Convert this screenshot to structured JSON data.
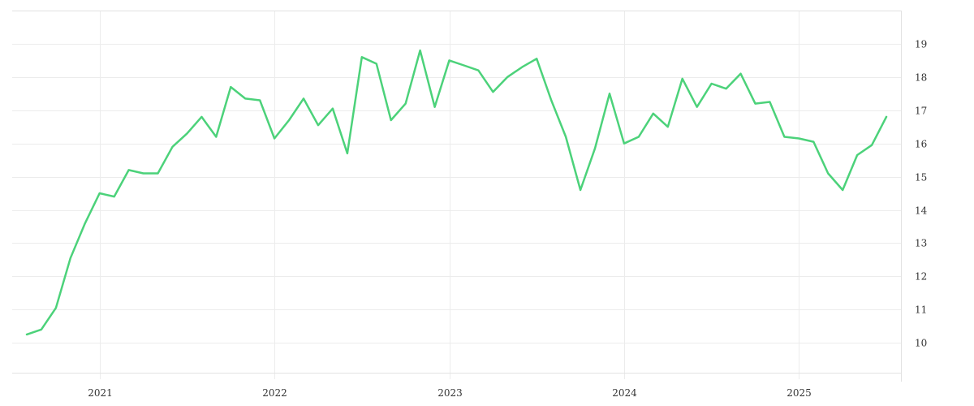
{
  "chart_data": {
    "type": "line",
    "title": "",
    "xlabel": "",
    "ylabel": "",
    "x_ticks": [
      "2021",
      "2022",
      "2023",
      "2024",
      "2025"
    ],
    "y_ticks": [
      "10",
      "11",
      "12",
      "13",
      "14",
      "15",
      "16",
      "17",
      "18",
      "19"
    ],
    "xlim": [
      "2020-07",
      "2025-08"
    ],
    "ylim": [
      9.1,
      20
    ],
    "y_axis_position": "right",
    "grid": true,
    "legend": "none",
    "line_color": "#4cd27a",
    "series": [
      {
        "x": [
          "2020-08",
          "2020-09",
          "2020-10",
          "2020-11",
          "2020-12",
          "2021-01",
          "2021-02",
          "2021-03",
          "2021-04",
          "2021-05",
          "2021-06",
          "2021-07",
          "2021-08",
          "2021-09",
          "2021-10",
          "2021-11",
          "2021-12",
          "2022-01",
          "2022-02",
          "2022-03",
          "2022-04",
          "2022-05",
          "2022-06",
          "2022-07",
          "2022-08",
          "2022-09",
          "2022-10",
          "2022-11",
          "2022-12",
          "2023-01",
          "2023-02",
          "2023-03",
          "2023-04",
          "2023-05",
          "2023-06",
          "2023-07",
          "2023-08",
          "2023-09",
          "2023-10",
          "2023-11",
          "2023-12",
          "2024-01",
          "2024-02",
          "2024-03",
          "2024-04",
          "2024-05",
          "2024-06",
          "2024-07",
          "2024-08",
          "2024-09",
          "2024-10",
          "2024-11",
          "2024-12",
          "2025-01",
          "2025-02",
          "2025-03",
          "2025-04",
          "2025-05",
          "2025-06",
          "2025-07"
        ],
        "y": [
          10.25,
          10.4,
          11.05,
          12.55,
          13.6,
          14.5,
          14.4,
          15.2,
          15.1,
          15.1,
          15.9,
          16.3,
          16.8,
          16.2,
          17.7,
          17.35,
          17.3,
          16.15,
          16.7,
          17.35,
          16.55,
          17.05,
          15.7,
          18.6,
          18.4,
          16.7,
          17.2,
          18.8,
          17.1,
          18.5,
          18.35,
          18.2,
          17.55,
          18.0,
          18.3,
          18.55,
          17.3,
          16.2,
          14.6,
          15.85,
          17.5,
          16.0,
          16.2,
          16.9,
          16.5,
          17.95,
          17.1,
          17.8,
          17.65,
          18.1,
          17.2,
          17.25,
          16.2,
          16.15,
          16.05,
          15.1,
          14.6,
          15.65,
          15.95,
          16.8
        ]
      }
    ]
  }
}
